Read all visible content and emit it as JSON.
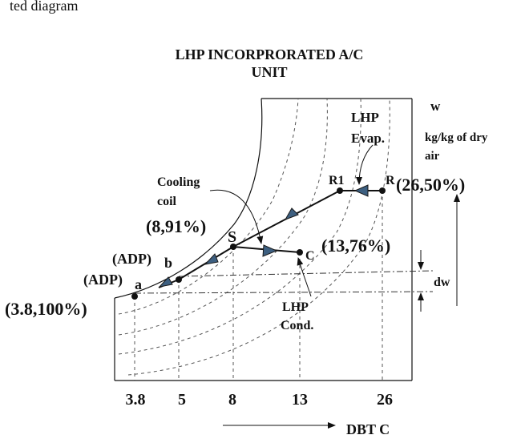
{
  "header": {
    "caption_fragment": "ted diagram",
    "title_line1": "LHP INCORPRORATED A/C",
    "title_line2": "UNIT"
  },
  "axes": {
    "w_label": "w",
    "w_units_line1": "kg/kg of dry",
    "w_units_line2": "air",
    "x_axis_label": "DBT C",
    "dw_label": "dw",
    "x_ticks": [
      "3.8",
      "5",
      "8",
      "13",
      "26"
    ]
  },
  "components": {
    "lhp_evap_line1": "LHP",
    "lhp_evap_line2": "Evap.",
    "cooling_coil_line1": "Cooling",
    "cooling_coil_line2": "coil",
    "lhp_cond_line1": "LHP",
    "lhp_cond_line2": "Cond."
  },
  "points": {
    "R": {
      "label": "R",
      "state": "(26,50%)"
    },
    "R1": {
      "label": "R1"
    },
    "S": {
      "label": "S",
      "state": "(8,91%)"
    },
    "C": {
      "label": "C",
      "state": "(13,76%)"
    },
    "b": {
      "label": "b",
      "adp": "(ADP)"
    },
    "a": {
      "label": "a",
      "adp": "(ADP)",
      "state": "(3.8,100%)"
    }
  }
}
